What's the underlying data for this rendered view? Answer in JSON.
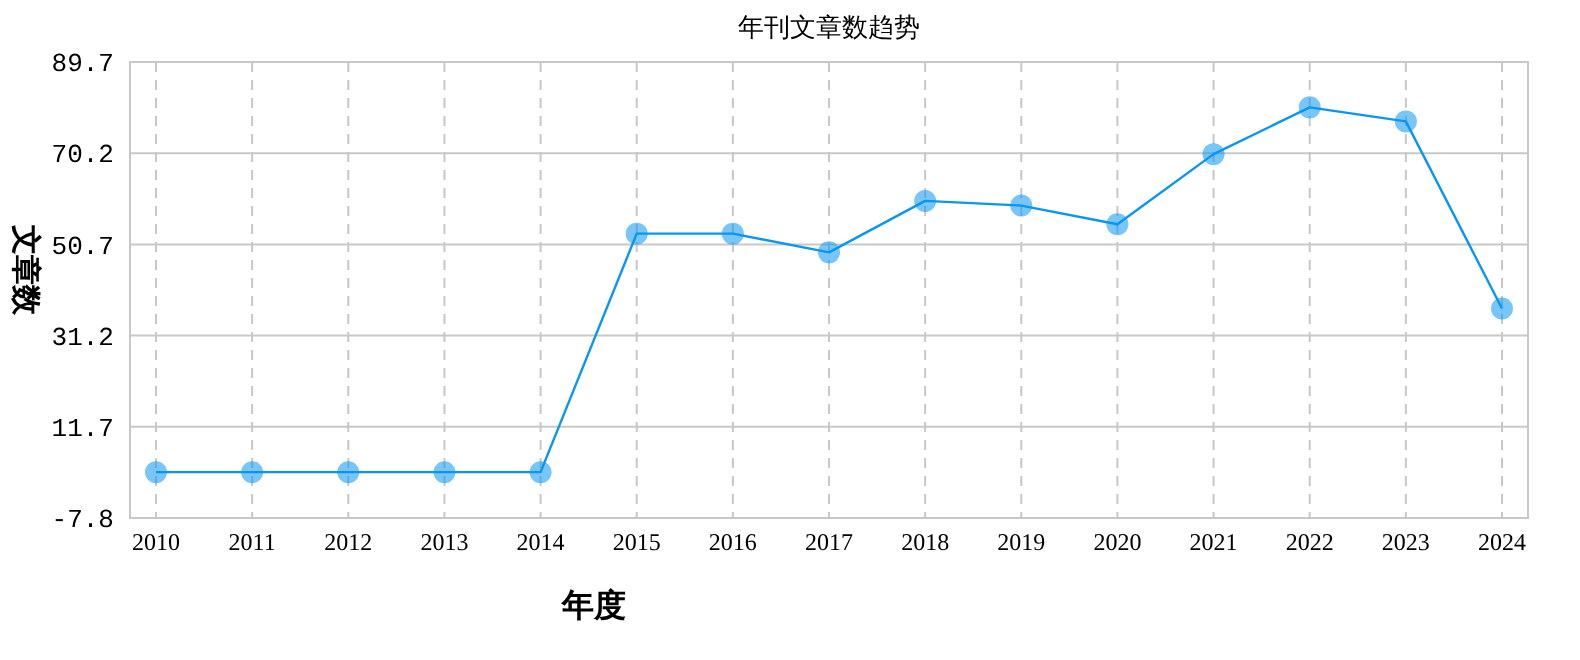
{
  "chart_data": {
    "type": "line",
    "title": "年刊文章数趋势",
    "xlabel": "年度",
    "ylabel": "文章数",
    "categories": [
      "2010",
      "2011",
      "2012",
      "2013",
      "2014",
      "2015",
      "2016",
      "2017",
      "2018",
      "2019",
      "2020",
      "2021",
      "2022",
      "2023",
      "2024"
    ],
    "series": [
      {
        "color": "#0a96f0",
        "values": [
          2,
          2,
          2,
          2,
          2,
          53,
          53,
          49,
          60,
          59,
          55,
          70,
          80,
          77,
          37
        ]
      }
    ],
    "ylim": [
      -7.8,
      89.7
    ],
    "yticks": [
      -7.8,
      11.7,
      31.2,
      50.7,
      70.2,
      89.7
    ],
    "grid": true,
    "marker": "circle",
    "line_style": "solid"
  }
}
